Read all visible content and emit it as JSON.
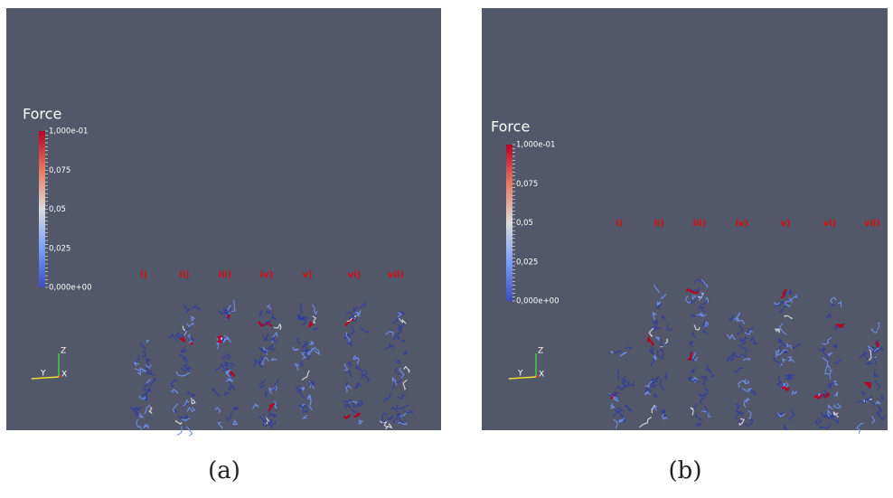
{
  "panels": [
    {
      "legend_title": "Force",
      "colorbar_labels": [
        "1,000e-01",
        "0,075",
        "0,05",
        "0,025",
        "0,000e+00"
      ],
      "column_labels": [
        "i)",
        "ii)",
        "iii)",
        "iv)",
        "v)",
        "vi)",
        "vii)"
      ],
      "axes": {
        "z": "Z",
        "y": "Y",
        "x": "X"
      },
      "caption": "(a)"
    },
    {
      "legend_title": "Force",
      "colorbar_labels": [
        "1,000e-01",
        "0,075",
        "0,05",
        "0,025",
        "0,000e+00"
      ],
      "column_labels": [
        "i)",
        "ii)",
        "iii)",
        "iv)",
        "v)",
        "vi)",
        "vii)"
      ],
      "axes": {
        "z": "Z",
        "y": "Y",
        "x": "X"
      },
      "caption": "(b)"
    }
  ]
}
